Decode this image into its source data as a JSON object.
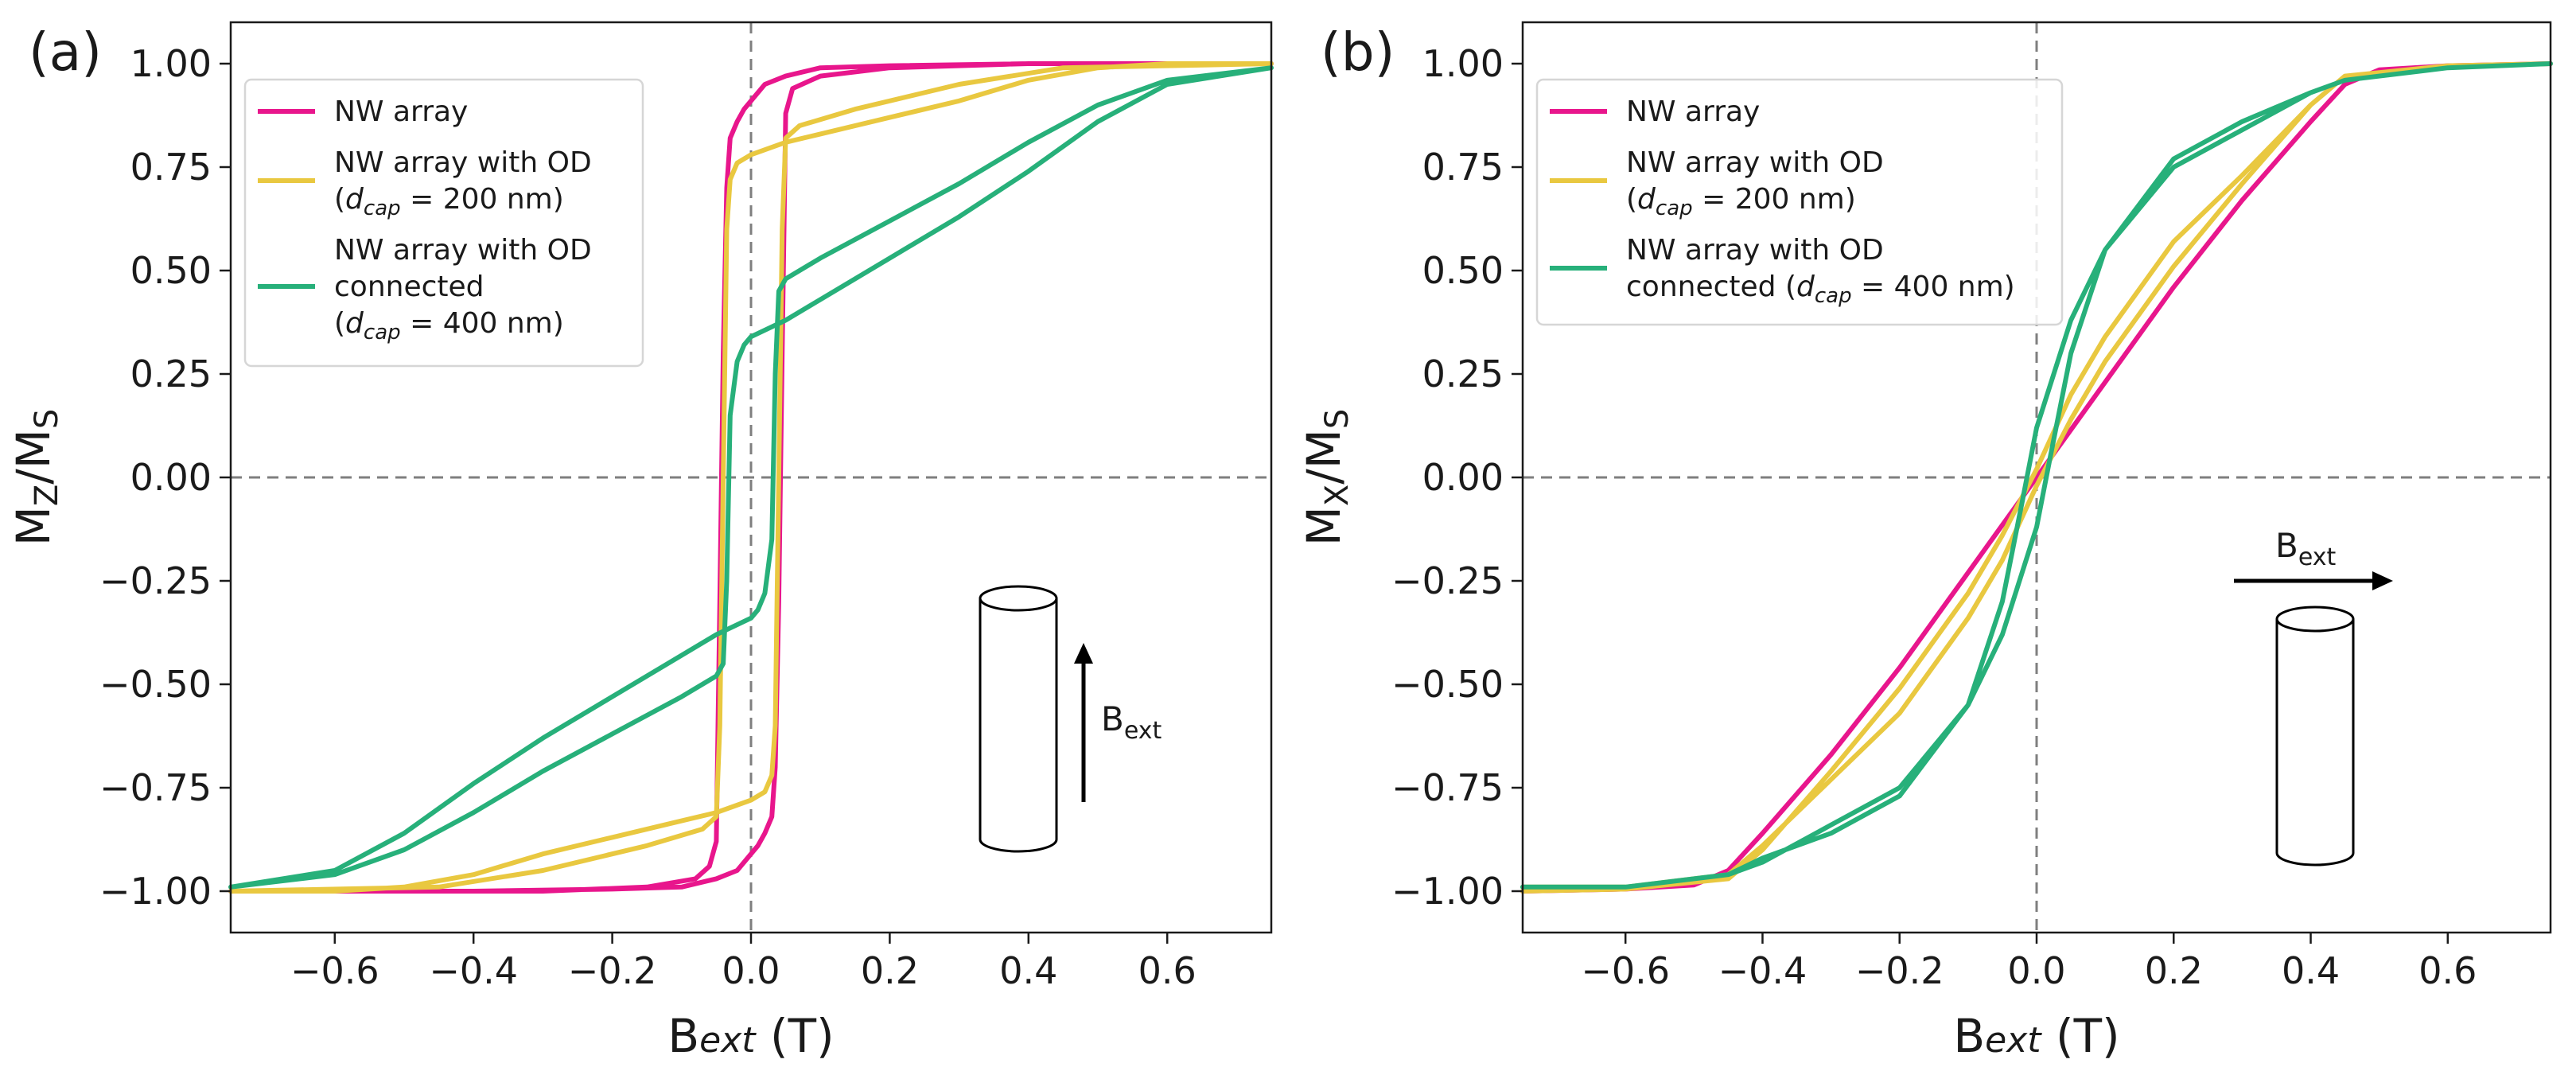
{
  "chart_data": [
    {
      "id": "a",
      "type": "line",
      "panel_label": "(a)",
      "xlabel": "B",
      "xlabel_sub": "ext",
      "xlabel_unit": "(T)",
      "ylabel": "M",
      "ylabel_sub": "Z",
      "ylabel_rest": "/M",
      "ylabel_sub2": "S",
      "xlim": [
        -0.75,
        0.75
      ],
      "ylim": [
        -1.1,
        1.1
      ],
      "xticks": [
        -0.6,
        -0.4,
        -0.2,
        0.0,
        0.2,
        0.4,
        0.6
      ],
      "xtick_labels": [
        "−0.6",
        "−0.4",
        "−0.2",
        "0.0",
        "0.2",
        "0.4",
        "0.6"
      ],
      "yticks": [
        1.0,
        0.75,
        0.5,
        0.25,
        0.0,
        -0.25,
        -0.5,
        -0.75,
        -1.0
      ],
      "ytick_labels": [
        "1.00",
        "0.75",
        "0.50",
        "0.25",
        "0.00",
        "−0.25",
        "−0.50",
        "−0.75",
        "−1.00"
      ],
      "legend": [
        {
          "lines": [
            "NW array"
          ],
          "color": "#e8168c"
        },
        {
          "lines": [
            "NW array with OD",
            "(d_cap = 200 nm)"
          ],
          "color": "#e9c840"
        },
        {
          "lines": [
            "NW array with OD",
            "connected",
            "(d_cap = 400 nm)"
          ],
          "color": "#27b07a"
        }
      ],
      "cap_sub": "cap",
      "schematic_label": "B",
      "schematic_sub": "ext",
      "series": [
        {
          "name": "NW array",
          "color": "#e8168c",
          "x": [
            -0.75,
            -0.3,
            -0.15,
            -0.08,
            -0.06,
            -0.05,
            -0.045,
            -0.04,
            -0.035,
            -0.03,
            -0.02,
            -0.01,
            0.0,
            0.02,
            0.05,
            0.1,
            0.2,
            0.4,
            0.75,
            0.4,
            0.2,
            0.1,
            0.06,
            0.05,
            0.045,
            0.04,
            0.035,
            0.03,
            0.02,
            0.01,
            0.0,
            -0.02,
            -0.05,
            -0.1,
            -0.2,
            -0.4,
            -0.75
          ],
          "y": [
            -1.0,
            -1.0,
            -0.99,
            -0.97,
            -0.94,
            -0.88,
            -0.3,
            0.3,
            0.7,
            0.82,
            0.86,
            0.89,
            0.91,
            0.95,
            0.97,
            0.99,
            0.995,
            1.0,
            1.0,
            1.0,
            0.99,
            0.97,
            0.94,
            0.88,
            0.3,
            -0.3,
            -0.7,
            -0.82,
            -0.86,
            -0.89,
            -0.91,
            -0.95,
            -0.97,
            -0.99,
            -0.995,
            -1.0,
            -1.0
          ]
        },
        {
          "name": "NW array with OD (d_cap = 200 nm)",
          "color": "#e9c840",
          "x": [
            -0.75,
            -0.45,
            -0.3,
            -0.15,
            -0.07,
            -0.05,
            -0.045,
            -0.04,
            -0.035,
            -0.03,
            -0.02,
            0.0,
            0.05,
            0.1,
            0.2,
            0.3,
            0.4,
            0.5,
            0.6,
            0.75,
            0.45,
            0.3,
            0.15,
            0.07,
            0.05,
            0.045,
            0.04,
            0.035,
            0.03,
            0.02,
            0.0,
            -0.05,
            -0.1,
            -0.2,
            -0.3,
            -0.4,
            -0.5,
            -0.6,
            -0.75
          ],
          "y": [
            -1.0,
            -0.99,
            -0.95,
            -0.89,
            -0.85,
            -0.82,
            -0.6,
            0.0,
            0.6,
            0.72,
            0.76,
            0.78,
            0.81,
            0.83,
            0.87,
            0.91,
            0.96,
            0.99,
            1.0,
            1.0,
            0.99,
            0.95,
            0.89,
            0.85,
            0.82,
            0.6,
            0.0,
            -0.6,
            -0.72,
            -0.76,
            -0.78,
            -0.81,
            -0.83,
            -0.87,
            -0.91,
            -0.96,
            -0.99,
            -1.0,
            -1.0
          ]
        },
        {
          "name": "NW array with OD connected (d_cap = 400 nm)",
          "color": "#27b07a",
          "x": [
            -0.75,
            -0.6,
            -0.5,
            -0.4,
            -0.3,
            -0.2,
            -0.1,
            -0.05,
            -0.04,
            -0.035,
            -0.03,
            -0.02,
            -0.01,
            0.0,
            0.05,
            0.1,
            0.2,
            0.3,
            0.4,
            0.5,
            0.6,
            0.75,
            0.6,
            0.5,
            0.4,
            0.3,
            0.2,
            0.1,
            0.05,
            0.04,
            0.035,
            0.03,
            0.02,
            0.01,
            0.0,
            -0.05,
            -0.1,
            -0.2,
            -0.3,
            -0.4,
            -0.5,
            -0.6,
            -0.75
          ],
          "y": [
            -0.99,
            -0.96,
            -0.9,
            -0.81,
            -0.71,
            -0.62,
            -0.53,
            -0.48,
            -0.45,
            -0.25,
            0.15,
            0.28,
            0.32,
            0.34,
            0.38,
            0.43,
            0.53,
            0.63,
            0.74,
            0.86,
            0.95,
            0.99,
            0.96,
            0.9,
            0.81,
            0.71,
            0.62,
            0.53,
            0.48,
            0.45,
            0.25,
            -0.15,
            -0.28,
            -0.32,
            -0.34,
            -0.38,
            -0.43,
            -0.53,
            -0.63,
            -0.74,
            -0.86,
            -0.95,
            -0.99
          ]
        }
      ]
    },
    {
      "id": "b",
      "type": "line",
      "panel_label": "(b)",
      "xlabel": "B",
      "xlabel_sub": "ext",
      "xlabel_unit": "(T)",
      "ylabel": "M",
      "ylabel_sub": "X",
      "ylabel_rest": "/M",
      "ylabel_sub2": "S",
      "xlim": [
        -0.75,
        0.75
      ],
      "ylim": [
        -1.1,
        1.1
      ],
      "xticks": [
        -0.6,
        -0.4,
        -0.2,
        0.0,
        0.2,
        0.4,
        0.6
      ],
      "xtick_labels": [
        "−0.6",
        "−0.4",
        "−0.2",
        "0.0",
        "0.2",
        "0.4",
        "0.6"
      ],
      "yticks": [
        1.0,
        0.75,
        0.5,
        0.25,
        0.0,
        -0.25,
        -0.5,
        -0.75,
        -1.0
      ],
      "ytick_labels": [
        "1.00",
        "0.75",
        "0.50",
        "0.25",
        "0.00",
        "−0.25",
        "−0.50",
        "−0.75",
        "−1.00"
      ],
      "legend": [
        {
          "lines": [
            "NW array"
          ],
          "color": "#e8168c"
        },
        {
          "lines": [
            "NW array with OD",
            " (d_cap = 200 nm)"
          ],
          "color": "#e9c840"
        },
        {
          "lines": [
            "NW array with OD",
            "connected (d_cap = 400 nm)"
          ],
          "color": "#27b07a"
        }
      ],
      "cap_sub": "cap",
      "schematic_label": "B",
      "schematic_sub": "ext",
      "series": [
        {
          "name": "NW array",
          "color": "#e8168c",
          "x": [
            -0.75,
            -0.6,
            -0.5,
            -0.45,
            -0.4,
            -0.3,
            -0.2,
            -0.1,
            0.0,
            0.1,
            0.2,
            0.3,
            0.4,
            0.45,
            0.5,
            0.6,
            0.75
          ],
          "y": [
            -1.0,
            -0.995,
            -0.985,
            -0.95,
            -0.86,
            -0.67,
            -0.46,
            -0.23,
            0.0,
            0.23,
            0.46,
            0.67,
            0.86,
            0.95,
            0.985,
            0.995,
            1.0
          ]
        },
        {
          "name": "NW array with OD (d_cap = 200 nm)",
          "color": "#e9c840",
          "x": [
            -0.75,
            -0.6,
            -0.45,
            -0.4,
            -0.3,
            -0.2,
            -0.1,
            -0.05,
            0.0,
            0.05,
            0.1,
            0.2,
            0.3,
            0.4,
            0.45,
            0.6,
            0.75,
            0.6,
            0.45,
            0.4,
            0.3,
            0.2,
            0.1,
            0.05,
            0.0,
            -0.05,
            -0.1,
            -0.2,
            -0.3,
            -0.4,
            -0.45,
            -0.6,
            -0.75
          ],
          "y": [
            -0.99,
            -0.99,
            -0.96,
            -0.89,
            -0.73,
            -0.57,
            -0.34,
            -0.2,
            -0.02,
            0.14,
            0.28,
            0.51,
            0.71,
            0.9,
            0.97,
            0.995,
            1.0,
            0.995,
            0.97,
            0.9,
            0.73,
            0.57,
            0.34,
            0.2,
            0.02,
            -0.14,
            -0.28,
            -0.51,
            -0.71,
            -0.9,
            -0.97,
            -0.995,
            -1.0
          ]
        },
        {
          "name": "NW array with OD connected (d_cap = 400 nm)",
          "color": "#27b07a",
          "x": [
            -0.75,
            -0.6,
            -0.45,
            -0.4,
            -0.3,
            -0.2,
            -0.1,
            -0.05,
            0.0,
            0.02,
            0.05,
            0.1,
            0.2,
            0.3,
            0.4,
            0.45,
            0.6,
            0.75,
            0.6,
            0.45,
            0.4,
            0.3,
            0.2,
            0.1,
            0.05,
            0.0,
            -0.02,
            -0.05,
            -0.1,
            -0.2,
            -0.3,
            -0.4,
            -0.45,
            -0.6,
            -0.75
          ],
          "y": [
            -0.99,
            -0.99,
            -0.96,
            -0.92,
            -0.86,
            -0.77,
            -0.55,
            -0.38,
            -0.12,
            0.05,
            0.3,
            0.55,
            0.75,
            0.84,
            0.93,
            0.96,
            0.99,
            1.0,
            0.99,
            0.96,
            0.93,
            0.86,
            0.77,
            0.55,
            0.38,
            0.12,
            -0.05,
            -0.3,
            -0.55,
            -0.75,
            -0.84,
            -0.93,
            -0.96,
            -0.99,
            -0.99
          ]
        }
      ]
    }
  ]
}
